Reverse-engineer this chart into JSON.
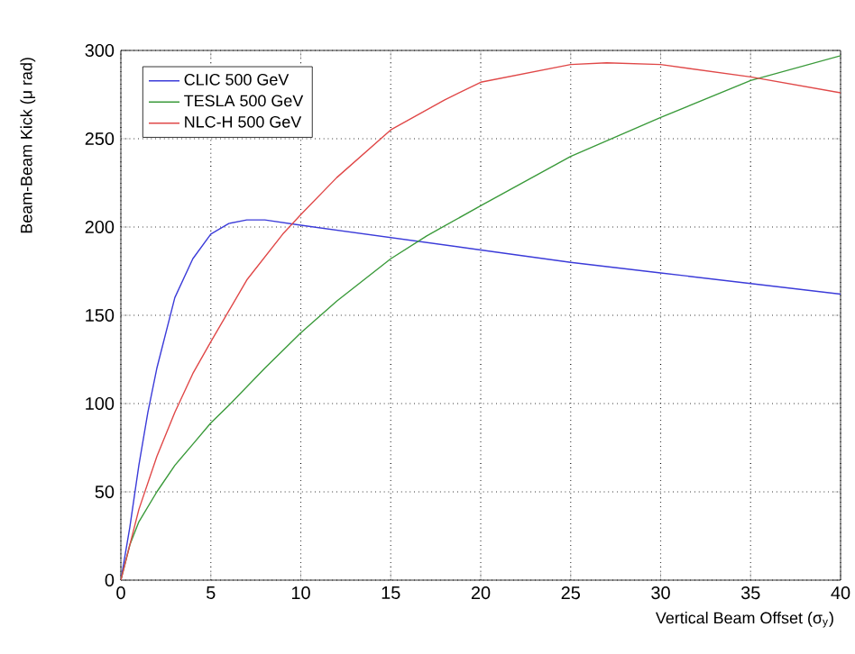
{
  "chart_data": {
    "type": "line",
    "xlabel": "Vertical Beam Offset (σ$_{y}$)",
    "ylabel": "Beam-Beam Kick (μ rad)",
    "xlim": [
      0,
      40
    ],
    "ylim": [
      0,
      300
    ],
    "xticks": [
      0,
      5,
      10,
      15,
      20,
      25,
      30,
      35,
      40
    ],
    "yticks": [
      0,
      50,
      100,
      150,
      200,
      250,
      300
    ],
    "grid": true,
    "legend": "top left",
    "marker": "none",
    "line_style": "solid",
    "series": [
      {
        "name": "CLIC 500 GeV",
        "color": "#3b3bd9",
        "x": [
          0,
          0.5,
          1,
          1.5,
          2,
          3,
          4,
          5,
          6,
          7,
          8,
          10,
          15,
          20,
          25,
          30,
          35,
          40
        ],
        "values": [
          0,
          30,
          65,
          95,
          120,
          160,
          182,
          196,
          202,
          204,
          204,
          201,
          194,
          187,
          180,
          174,
          168,
          162
        ]
      },
      {
        "name": "TESLA 500 GeV",
        "color": "#3a9a3a",
        "x": [
          0,
          0.5,
          1,
          2,
          3,
          4,
          5,
          6,
          8,
          10,
          12,
          15,
          17,
          20,
          25,
          30,
          35,
          40
        ],
        "values": [
          0,
          20,
          33,
          50,
          65,
          77,
          89,
          99,
          120,
          140,
          158,
          182,
          195,
          212,
          240,
          262,
          283,
          297
        ]
      },
      {
        "name": "NLC-H 500 GeV",
        "color": "#e04848",
        "x": [
          0,
          1,
          2,
          3,
          4,
          5,
          7,
          9,
          10,
          12,
          15,
          18,
          20,
          25,
          27,
          30,
          35,
          40
        ],
        "values": [
          0,
          40,
          70,
          95,
          117,
          135,
          170,
          196,
          207,
          228,
          255,
          272,
          282,
          292,
          293,
          292,
          285,
          276
        ]
      }
    ]
  }
}
